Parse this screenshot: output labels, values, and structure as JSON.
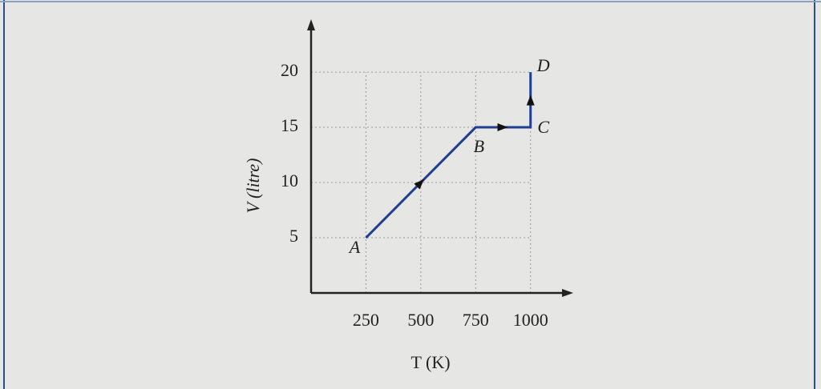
{
  "chart_data": {
    "type": "line",
    "x_label": "T (K)",
    "y_label": "V (litre)",
    "series": [
      {
        "x": [
          250,
          750,
          1000,
          1000
        ],
        "values": [
          5,
          15,
          15,
          20
        ],
        "color": "#1f3f8f",
        "point_labels": [
          "A",
          "B",
          "C",
          "D"
        ]
      }
    ],
    "xlim": [
      0,
      1180
    ],
    "ylim": [
      0,
      24.5
    ],
    "xticks": [
      250,
      500,
      750,
      1000
    ],
    "yticks": [
      5,
      10,
      15,
      20
    ],
    "grid": true
  }
}
